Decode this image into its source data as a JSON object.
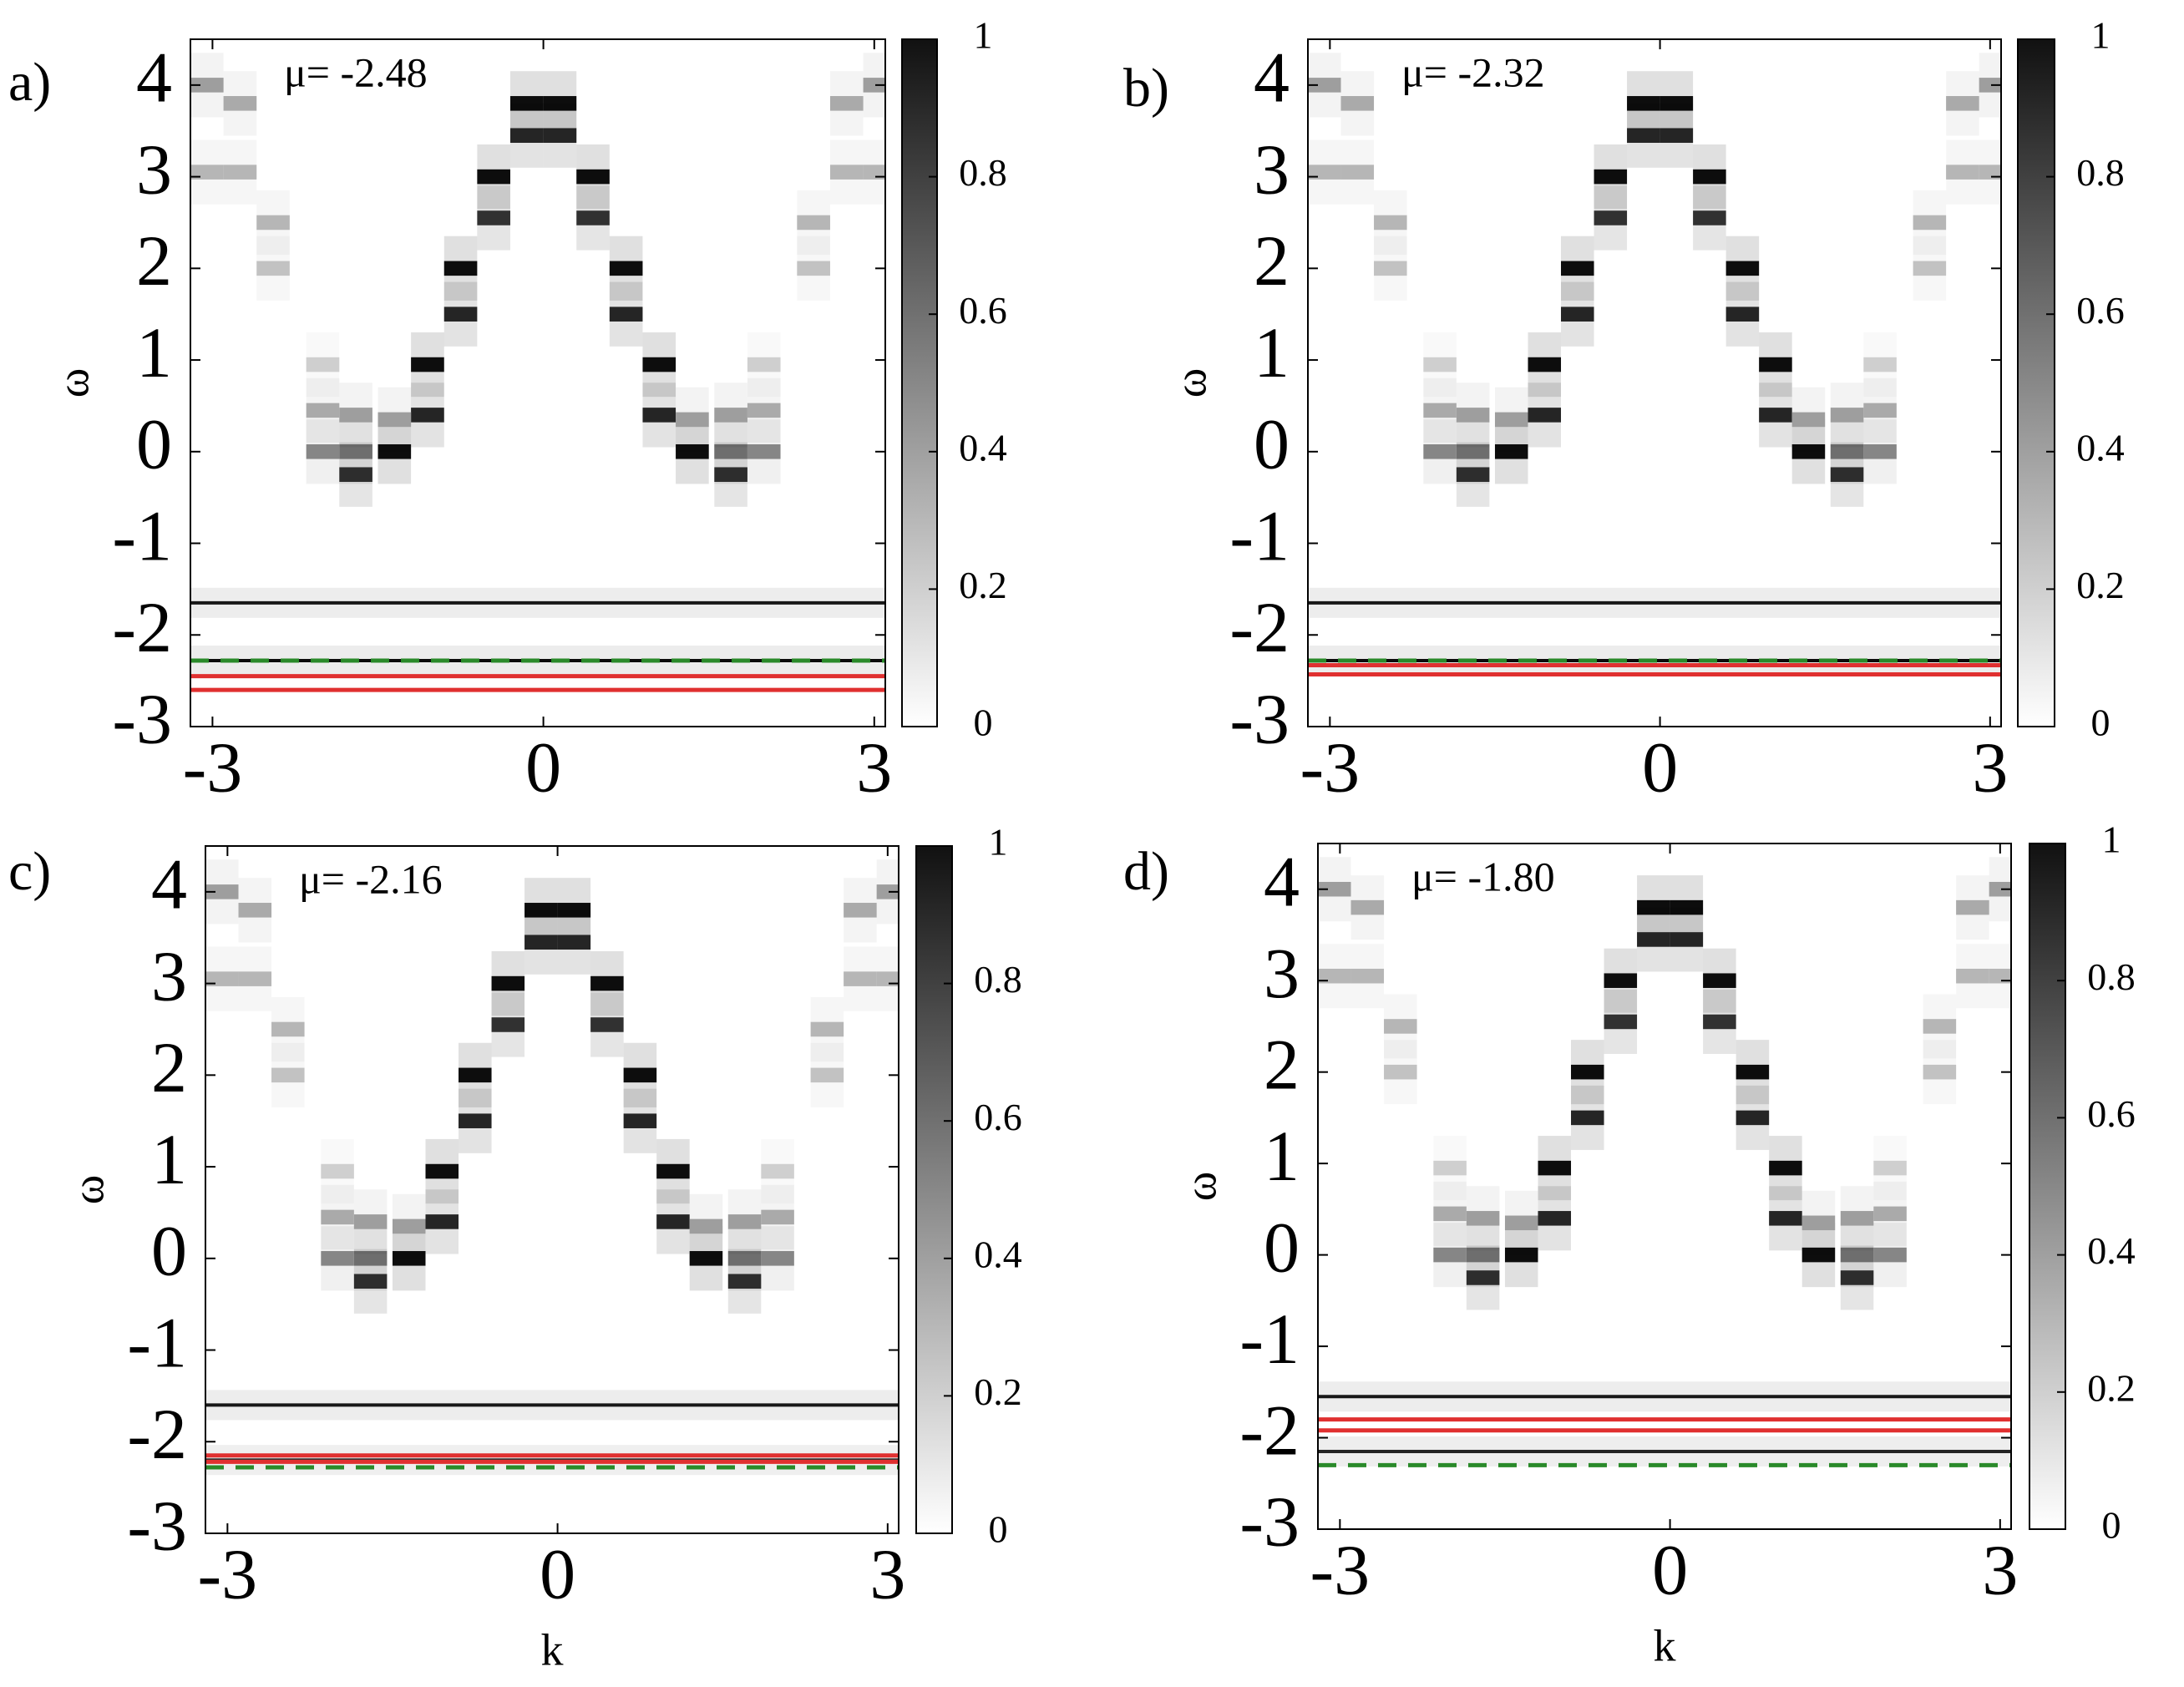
{
  "chart_data": [
    {
      "type": "heatmap",
      "label": "a)",
      "title": "μ= -2.48",
      "ylabel": "ω",
      "xlim": [
        -3.2,
        3.1
      ],
      "ylim": [
        -3,
        4.5
      ],
      "xticks": [
        -3,
        0,
        3
      ],
      "yticks": [
        -3,
        -2,
        -1,
        0,
        1,
        2,
        3,
        4
      ],
      "zlim": [
        0,
        1
      ],
      "zticks": [
        0,
        0.2,
        0.4,
        0.6,
        0.8,
        1
      ],
      "cells": {
        "k": [
          -0.15,
          -0.15,
          -0.45,
          -0.45,
          -0.75,
          -0.75,
          -1.05,
          -1.05,
          -1.35,
          -1.35,
          -1.7,
          -1.7,
          -1.7,
          -2.0,
          -2.0,
          -2.0,
          -2.45,
          -2.45,
          -2.75,
          -2.75,
          -3.05,
          -3.05,
          0.15,
          0.15,
          0.45,
          0.45,
          0.75,
          0.75,
          1.05,
          1.05,
          1.35,
          1.35,
          1.7,
          1.7,
          1.7,
          2.0,
          2.0,
          2.0,
          2.45,
          2.45,
          2.75,
          2.75,
          3.05,
          3.05
        ],
        "omega": [
          3.8,
          3.45,
          3.0,
          2.55,
          2.0,
          1.5,
          0.95,
          0.4,
          0.0,
          0.35,
          -0.25,
          0.0,
          0.4,
          0.0,
          0.45,
          0.95,
          2.5,
          2.0,
          3.8,
          3.05,
          4.0,
          3.05,
          3.8,
          3.45,
          3.0,
          2.55,
          2.0,
          1.5,
          0.95,
          0.4,
          0.0,
          0.35,
          -0.25,
          0.0,
          0.4,
          0.0,
          0.45,
          0.95,
          2.5,
          2.0,
          3.8,
          3.05,
          4.0,
          3.05
        ],
        "intensity": [
          1,
          0.9,
          1,
          0.85,
          1,
          0.9,
          1,
          0.9,
          1,
          0.4,
          0.85,
          0.6,
          0.4,
          0.5,
          0.35,
          0.2,
          0.3,
          0.25,
          0.35,
          0.3,
          0.4,
          0.3,
          1,
          0.9,
          1,
          0.85,
          1,
          0.9,
          1,
          0.9,
          1,
          0.4,
          0.85,
          0.6,
          0.4,
          0.5,
          0.35,
          0.2,
          0.3,
          0.25,
          0.35,
          0.3,
          0.4,
          0.3
        ]
      },
      "flat_bands": {
        "omega": [
          -1.65,
          -2.28
        ],
        "intensity": [
          0.9,
          0.95
        ]
      },
      "red_lines": [
        -2.45,
        -2.6
      ],
      "green_line": -2.28,
      "red_color": "#e03030",
      "green_color": "#2a8a2a"
    },
    {
      "type": "heatmap",
      "label": "b)",
      "title": "μ= -2.32",
      "ylabel": "ω",
      "xlim": [
        -3.2,
        3.1
      ],
      "ylim": [
        -3,
        4.5
      ],
      "xticks": [
        -3,
        0,
        3
      ],
      "yticks": [
        -3,
        -2,
        -1,
        0,
        1,
        2,
        3,
        4
      ],
      "zlim": [
        0,
        1
      ],
      "zticks": [
        0,
        0.2,
        0.4,
        0.6,
        0.8,
        1
      ],
      "cells": {
        "k": [
          -0.15,
          -0.15,
          -0.45,
          -0.45,
          -0.75,
          -0.75,
          -1.05,
          -1.05,
          -1.35,
          -1.35,
          -1.7,
          -1.7,
          -1.7,
          -2.0,
          -2.0,
          -2.0,
          -2.45,
          -2.45,
          -2.75,
          -2.75,
          -3.05,
          -3.05,
          0.15,
          0.15,
          0.45,
          0.45,
          0.75,
          0.75,
          1.05,
          1.05,
          1.35,
          1.35,
          1.7,
          1.7,
          1.7,
          2.0,
          2.0,
          2.0,
          2.45,
          2.45,
          2.75,
          2.75,
          3.05,
          3.05
        ],
        "omega": [
          3.8,
          3.45,
          3.0,
          2.55,
          2.0,
          1.5,
          0.95,
          0.4,
          0.0,
          0.35,
          -0.25,
          0.0,
          0.4,
          0.0,
          0.45,
          0.95,
          2.5,
          2.0,
          3.8,
          3.05,
          4.0,
          3.05,
          3.8,
          3.45,
          3.0,
          2.55,
          2.0,
          1.5,
          0.95,
          0.4,
          0.0,
          0.35,
          -0.25,
          0.0,
          0.4,
          0.0,
          0.45,
          0.95,
          2.5,
          2.0,
          3.8,
          3.05,
          4.0,
          3.05
        ],
        "intensity": [
          1,
          0.9,
          1,
          0.85,
          1,
          0.9,
          1,
          0.9,
          1,
          0.4,
          0.85,
          0.6,
          0.4,
          0.5,
          0.35,
          0.2,
          0.3,
          0.25,
          0.35,
          0.3,
          0.4,
          0.3,
          1,
          0.9,
          1,
          0.85,
          1,
          0.9,
          1,
          0.9,
          1,
          0.4,
          0.85,
          0.6,
          0.4,
          0.5,
          0.35,
          0.2,
          0.3,
          0.25,
          0.35,
          0.3,
          0.4,
          0.3
        ]
      },
      "flat_bands": {
        "omega": [
          -1.65,
          -2.28
        ],
        "intensity": [
          0.9,
          0.95
        ]
      },
      "red_lines": [
        -2.33,
        -2.43
      ],
      "green_line": -2.28,
      "red_color": "#e03030",
      "green_color": "#2a8a2a"
    },
    {
      "type": "heatmap",
      "label": "c)",
      "title": "μ= -2.16",
      "ylabel": "ω",
      "xlabel": "k",
      "xlim": [
        -3.2,
        3.1
      ],
      "ylim": [
        -3,
        4.5
      ],
      "xticks": [
        -3,
        0,
        3
      ],
      "yticks": [
        -3,
        -2,
        -1,
        0,
        1,
        2,
        3,
        4
      ],
      "zlim": [
        0,
        1
      ],
      "zticks": [
        0,
        0.2,
        0.4,
        0.6,
        0.8,
        1
      ],
      "cells": {
        "k": [
          -0.15,
          -0.15,
          -0.45,
          -0.45,
          -0.75,
          -0.75,
          -1.05,
          -1.05,
          -1.35,
          -1.35,
          -1.7,
          -1.7,
          -1.7,
          -2.0,
          -2.0,
          -2.0,
          -2.45,
          -2.45,
          -2.75,
          -2.75,
          -3.05,
          -3.05,
          0.15,
          0.15,
          0.45,
          0.45,
          0.75,
          0.75,
          1.05,
          1.05,
          1.35,
          1.35,
          1.7,
          1.7,
          1.7,
          2.0,
          2.0,
          2.0,
          2.45,
          2.45,
          2.75,
          2.75,
          3.05,
          3.05
        ],
        "omega": [
          3.8,
          3.45,
          3.0,
          2.55,
          2.0,
          1.5,
          0.95,
          0.4,
          0.0,
          0.35,
          -0.25,
          0.0,
          0.4,
          0.0,
          0.45,
          0.95,
          2.5,
          2.0,
          3.8,
          3.05,
          4.0,
          3.05,
          3.8,
          3.45,
          3.0,
          2.55,
          2.0,
          1.5,
          0.95,
          0.4,
          0.0,
          0.35,
          -0.25,
          0.0,
          0.4,
          0.0,
          0.45,
          0.95,
          2.5,
          2.0,
          3.8,
          3.05,
          4.0,
          3.05
        ],
        "intensity": [
          1,
          0.9,
          1,
          0.85,
          1,
          0.9,
          1,
          0.9,
          1,
          0.4,
          0.85,
          0.6,
          0.4,
          0.5,
          0.35,
          0.2,
          0.3,
          0.25,
          0.35,
          0.3,
          0.4,
          0.3,
          1,
          0.9,
          1,
          0.85,
          1,
          0.9,
          1,
          0.9,
          1,
          0.4,
          0.85,
          0.6,
          0.4,
          0.5,
          0.35,
          0.2,
          0.3,
          0.25,
          0.35,
          0.3,
          0.4,
          0.3
        ]
      },
      "flat_bands": {
        "omega": [
          -1.6,
          -2.2
        ],
        "intensity": [
          0.9,
          0.8
        ]
      },
      "red_lines": [
        -2.15,
        -2.22
      ],
      "green_line": -2.28,
      "red_color": "#e03030",
      "green_color": "#2a8a2a"
    },
    {
      "type": "heatmap",
      "label": "d)",
      "title": "μ= -1.80",
      "ylabel": "ω",
      "xlabel": "k",
      "xlim": [
        -3.2,
        3.1
      ],
      "ylim": [
        -3,
        4.5
      ],
      "xticks": [
        -3,
        0,
        3
      ],
      "yticks": [
        -3,
        -2,
        -1,
        0,
        1,
        2,
        3,
        4
      ],
      "zlim": [
        0,
        1
      ],
      "zticks": [
        0,
        0.2,
        0.4,
        0.6,
        0.8,
        1
      ],
      "cells": {
        "k": [
          -0.15,
          -0.15,
          -0.45,
          -0.45,
          -0.75,
          -0.75,
          -1.05,
          -1.05,
          -1.35,
          -1.35,
          -1.7,
          -1.7,
          -1.7,
          -2.0,
          -2.0,
          -2.0,
          -2.45,
          -2.45,
          -2.75,
          -2.75,
          -3.05,
          -3.05,
          0.15,
          0.15,
          0.45,
          0.45,
          0.75,
          0.75,
          1.05,
          1.05,
          1.35,
          1.35,
          1.7,
          1.7,
          1.7,
          2.0,
          2.0,
          2.0,
          2.45,
          2.45,
          2.75,
          2.75,
          3.05,
          3.05
        ],
        "omega": [
          3.8,
          3.45,
          3.0,
          2.55,
          2.0,
          1.5,
          0.95,
          0.4,
          0.0,
          0.35,
          -0.25,
          0.0,
          0.4,
          0.0,
          0.45,
          0.95,
          2.5,
          2.0,
          3.8,
          3.05,
          4.0,
          3.05,
          3.8,
          3.45,
          3.0,
          2.55,
          2.0,
          1.5,
          0.95,
          0.4,
          0.0,
          0.35,
          -0.25,
          0.0,
          0.4,
          0.0,
          0.45,
          0.95,
          2.5,
          2.0,
          3.8,
          3.05,
          4.0,
          3.05
        ],
        "intensity": [
          1,
          0.9,
          1,
          0.85,
          1,
          0.9,
          1,
          0.9,
          1,
          0.4,
          0.85,
          0.6,
          0.4,
          0.5,
          0.35,
          0.2,
          0.3,
          0.25,
          0.35,
          0.3,
          0.4,
          0.3,
          1,
          0.9,
          1,
          0.85,
          1,
          0.9,
          1,
          0.9,
          1,
          0.4,
          0.85,
          0.6,
          0.4,
          0.5,
          0.35,
          0.2,
          0.3,
          0.25,
          0.35,
          0.3,
          0.4,
          0.3
        ]
      },
      "flat_bands": {
        "omega": [
          -1.55,
          -2.15
        ],
        "intensity": [
          0.9,
          0.85
        ]
      },
      "red_lines": [
        -1.8,
        -1.92
      ],
      "green_line": -2.3,
      "red_color": "#e03030",
      "green_color": "#2a8a2a"
    }
  ]
}
